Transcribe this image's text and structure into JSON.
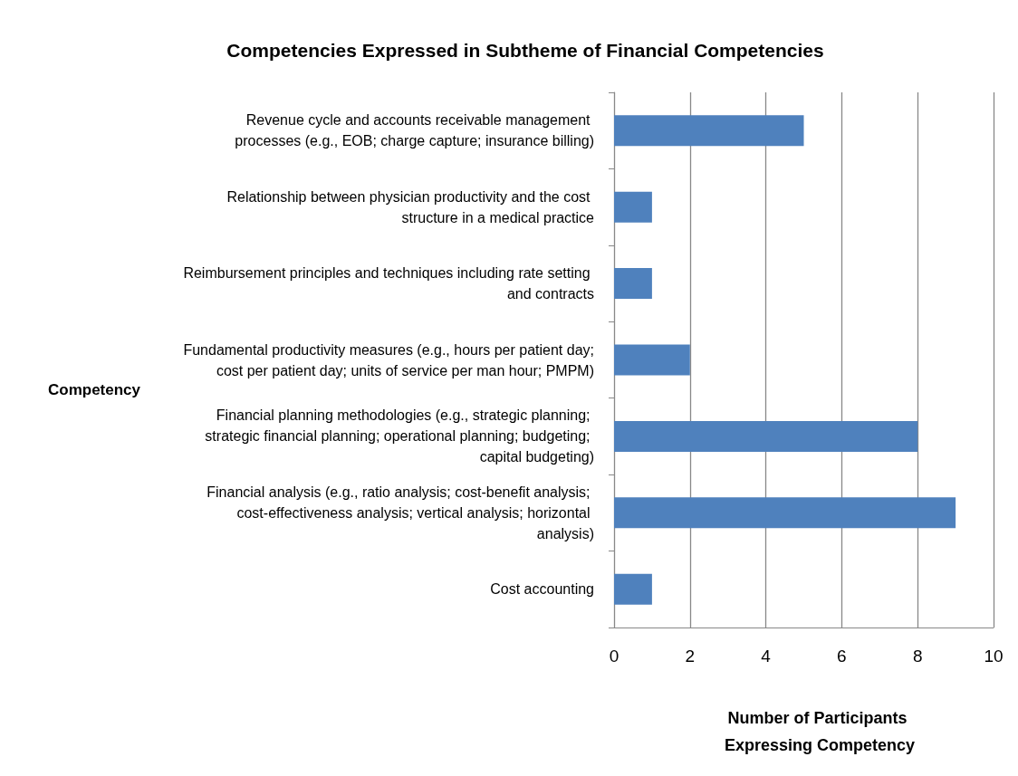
{
  "chart_data": {
    "type": "bar",
    "orientation": "horizontal",
    "title": "Competencies Expressed in Subtheme of Financial Competencies",
    "xlabel": "Number of Participants Expressing Competency",
    "ylabel": "Competency",
    "categories": [
      "Revenue cycle and accounts receivable management processes (e.g., EOB; charge capture; insurance billing)",
      "Relationship between physician productivity and the cost structure in a medical practice",
      "Reimbursement principles and techniques including rate setting and contracts",
      "Fundamental productivity measures (e.g., hours per patient day; cost per patient day; units of service per man hour; PMPM)",
      "Financial planning methodologies (e.g., strategic planning; strategic financial planning; operational planning; budgeting; capital budgeting)",
      "Financial analysis (e.g., ratio analysis; cost-benefit analysis; cost-effectiveness analysis; vertical analysis; horizontal analysis)",
      "Cost accounting"
    ],
    "values": [
      5,
      1,
      1,
      2,
      8,
      9,
      1
    ],
    "color": "#4f81bd",
    "xlim": [
      0,
      10
    ],
    "xticks": [
      0,
      2,
      4,
      6,
      8,
      10
    ],
    "grid": "x"
  }
}
